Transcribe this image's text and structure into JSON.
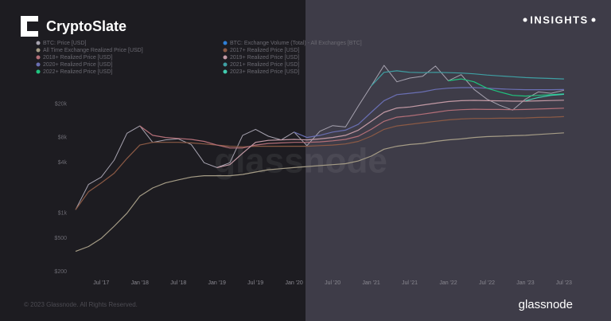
{
  "brand": "CryptoSlate",
  "badge": "INSIGHTS",
  "watermark": "glassnode",
  "source_logo": "glassnode",
  "footer": "© 2023 Glassnode. All Rights Reserved.",
  "chart_data": {
    "type": "line",
    "log_scale": true,
    "grid": false,
    "x": [
      "2017-03",
      "2017-05",
      "2017-07",
      "2017-09",
      "2017-11",
      "2018-01",
      "2018-03",
      "2018-05",
      "2018-07",
      "2018-09",
      "2018-11",
      "2019-01",
      "2019-03",
      "2019-05",
      "2019-07",
      "2019-09",
      "2019-11",
      "2020-01",
      "2020-03",
      "2020-05",
      "2020-07",
      "2020-09",
      "2020-11",
      "2021-01",
      "2021-03",
      "2021-05",
      "2021-07",
      "2021-09",
      "2021-11",
      "2022-01",
      "2022-03",
      "2022-05",
      "2022-07",
      "2022-09",
      "2022-11",
      "2023-01",
      "2023-03",
      "2023-05",
      "2023-07"
    ],
    "xlim": [
      "2017-03",
      "2023-08"
    ],
    "xticks": [
      {
        "value": "2017-07",
        "label": "Jul '17"
      },
      {
        "value": "2018-01",
        "label": "Jan '18"
      },
      {
        "value": "2018-07",
        "label": "Jul '18"
      },
      {
        "value": "2019-01",
        "label": "Jan '19"
      },
      {
        "value": "2019-07",
        "label": "Jul '19"
      },
      {
        "value": "2020-01",
        "label": "Jan '20"
      },
      {
        "value": "2020-07",
        "label": "Jul '20"
      },
      {
        "value": "2021-01",
        "label": "Jan '21"
      },
      {
        "value": "2021-07",
        "label": "Jul '21"
      },
      {
        "value": "2022-01",
        "label": "Jan '22"
      },
      {
        "value": "2022-07",
        "label": "Jul '22"
      },
      {
        "value": "2023-01",
        "label": "Jan '23"
      },
      {
        "value": "2023-07",
        "label": "Jul '23"
      }
    ],
    "ylim": [
      165,
      105000
    ],
    "yticks": [
      {
        "value": 200,
        "label": "$200"
      },
      {
        "value": 500,
        "label": "$500"
      },
      {
        "value": 1000,
        "label": "$1k"
      },
      {
        "value": 4000,
        "label": "$4k"
      },
      {
        "value": 8000,
        "label": "$8k"
      },
      {
        "value": 20000,
        "label": "$20k"
      }
    ],
    "series": [
      {
        "name": "BTC: Price [USD]",
        "color": "#a7a3b0",
        "values": [
          1100,
          2200,
          2700,
          4300,
          9000,
          11000,
          7000,
          7500,
          7700,
          6600,
          4000,
          3500,
          4000,
          8500,
          10000,
          8300,
          7500,
          9300,
          6400,
          9500,
          11100,
          10700,
          19000,
          33000,
          58000,
          37000,
          41000,
          43000,
          57000,
          38000,
          45000,
          30000,
          23000,
          19400,
          17000,
          23000,
          28000,
          27000,
          29300
        ]
      },
      {
        "name": "BTC: Exchange Volume (Total) - All Exchanges [BTC]",
        "color": "#2f7fd6",
        "values": [
          null,
          null,
          null,
          null,
          null,
          null,
          null,
          null,
          null,
          null,
          null,
          null,
          null,
          null,
          null,
          null,
          null,
          null,
          null,
          null,
          null,
          null,
          null,
          null,
          null,
          null,
          null,
          null,
          null,
          null,
          null,
          null,
          null,
          null,
          null,
          null,
          null,
          null,
          null
        ]
      },
      {
        "name": "All Time Exchange Realized Price [USD]",
        "color": "#a59c86",
        "values": [
          350,
          400,
          500,
          700,
          1000,
          1600,
          2000,
          2300,
          2500,
          2700,
          2800,
          2800,
          2800,
          2900,
          3100,
          3300,
          3400,
          3500,
          3600,
          3700,
          3800,
          3900,
          4200,
          4800,
          5800,
          6300,
          6600,
          6800,
          7200,
          7500,
          7700,
          8000,
          8200,
          8300,
          8400,
          8500,
          8700,
          8900,
          9100
        ]
      },
      {
        "name": "2017+ Realized Price [USD]",
        "color": "#8c5a45",
        "values": [
          1100,
          1800,
          2300,
          3000,
          4500,
          6500,
          7000,
          7000,
          7000,
          6900,
          6700,
          6500,
          6300,
          6200,
          6300,
          6300,
          6300,
          6300,
          6300,
          6400,
          6500,
          6700,
          7200,
          8300,
          10000,
          11000,
          11500,
          12000,
          12500,
          13000,
          13300,
          13500,
          13500,
          13600,
          13600,
          13700,
          13900,
          14000,
          14200
        ]
      },
      {
        "name": "2018+ Realized Price [USD]",
        "color": "#b46f78",
        "values": [
          null,
          null,
          null,
          null,
          null,
          11000,
          8500,
          8000,
          7800,
          7600,
          7200,
          6500,
          6000,
          6000,
          6500,
          6800,
          6900,
          7000,
          7000,
          7100,
          7300,
          7600,
          8300,
          10000,
          12500,
          14000,
          14500,
          15200,
          16000,
          16800,
          17200,
          17400,
          17300,
          17300,
          17200,
          17300,
          17500,
          17700,
          17900
        ]
      },
      {
        "name": "2019+ Realized Price [USD]",
        "color": "#c39aa5",
        "values": [
          null,
          null,
          null,
          null,
          null,
          null,
          null,
          null,
          null,
          null,
          null,
          3500,
          3800,
          5200,
          7000,
          7400,
          7500,
          7600,
          7500,
          7700,
          8000,
          8500,
          9800,
          12500,
          16000,
          18000,
          18500,
          19500,
          20500,
          21500,
          22000,
          22200,
          22000,
          21900,
          21700,
          21700,
          21900,
          22100,
          22300
        ]
      },
      {
        "name": "2020+ Realized Price [USD]",
        "color": "#6a6fb3",
        "values": [
          null,
          null,
          null,
          null,
          null,
          null,
          null,
          null,
          null,
          null,
          null,
          null,
          null,
          null,
          null,
          null,
          null,
          9300,
          8000,
          8500,
          9300,
          9800,
          11500,
          16000,
          22000,
          26000,
          27000,
          28000,
          30000,
          31000,
          31500,
          31500,
          31000,
          30500,
          30000,
          29800,
          29800,
          29800,
          29900
        ]
      },
      {
        "name": "2021+ Realized Price [USD]",
        "color": "#3f9fa3",
        "values": [
          null,
          null,
          null,
          null,
          null,
          null,
          null,
          null,
          null,
          null,
          null,
          null,
          null,
          null,
          null,
          null,
          null,
          null,
          null,
          null,
          null,
          null,
          null,
          33000,
          48000,
          50000,
          48000,
          47500,
          48000,
          47500,
          47000,
          46000,
          44500,
          43500,
          42500,
          41500,
          41000,
          40500,
          40000
        ]
      },
      {
        "name": "2022+ Realized Price [USD]",
        "color": "#1fc47f",
        "values": [
          null,
          null,
          null,
          null,
          null,
          null,
          null,
          null,
          null,
          null,
          null,
          null,
          null,
          null,
          null,
          null,
          null,
          null,
          null,
          null,
          null,
          null,
          null,
          null,
          null,
          null,
          null,
          null,
          null,
          38000,
          40000,
          37000,
          31000,
          28000,
          25500,
          25000,
          25500,
          26000,
          26500
        ]
      },
      {
        "name": "2023+ Realized Price [USD]",
        "color": "#42cdb0",
        "values": [
          null,
          null,
          null,
          null,
          null,
          null,
          null,
          null,
          null,
          null,
          null,
          null,
          null,
          null,
          null,
          null,
          null,
          null,
          null,
          null,
          null,
          null,
          null,
          null,
          null,
          null,
          null,
          null,
          null,
          null,
          null,
          null,
          null,
          null,
          null,
          22000,
          24000,
          25500,
          26200
        ]
      }
    ]
  }
}
